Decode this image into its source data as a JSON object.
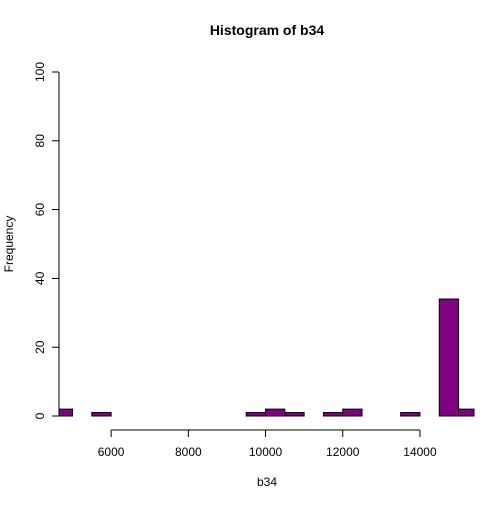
{
  "chart_data": {
    "type": "bar",
    "title": "Histogram of b34",
    "xlabel": "b34",
    "ylabel": "Frequency",
    "xlim": [
      4650,
      15400
    ],
    "ylim": [
      0,
      100
    ],
    "xticks": [
      6000,
      8000,
      10000,
      12000,
      14000
    ],
    "yticks": [
      0,
      20,
      40,
      60,
      80,
      100
    ],
    "bar_color": "#800080",
    "bins": [
      {
        "x0": 4500,
        "x1": 5000,
        "count": 2
      },
      {
        "x0": 5000,
        "x1": 5500,
        "count": 0
      },
      {
        "x0": 5500,
        "x1": 6000,
        "count": 1
      },
      {
        "x0": 6000,
        "x1": 6500,
        "count": 0
      },
      {
        "x0": 6500,
        "x1": 7000,
        "count": 0
      },
      {
        "x0": 7000,
        "x1": 7500,
        "count": 0
      },
      {
        "x0": 7500,
        "x1": 8000,
        "count": 0
      },
      {
        "x0": 8000,
        "x1": 8500,
        "count": 0
      },
      {
        "x0": 8500,
        "x1": 9000,
        "count": 0
      },
      {
        "x0": 9000,
        "x1": 9500,
        "count": 0
      },
      {
        "x0": 9500,
        "x1": 10000,
        "count": 1
      },
      {
        "x0": 10000,
        "x1": 10500,
        "count": 2
      },
      {
        "x0": 10500,
        "x1": 11000,
        "count": 1
      },
      {
        "x0": 11000,
        "x1": 11500,
        "count": 0
      },
      {
        "x0": 11500,
        "x1": 12000,
        "count": 1
      },
      {
        "x0": 12000,
        "x1": 12500,
        "count": 2
      },
      {
        "x0": 12500,
        "x1": 13000,
        "count": 0
      },
      {
        "x0": 13000,
        "x1": 13500,
        "count": 0
      },
      {
        "x0": 13500,
        "x1": 14000,
        "count": 1
      },
      {
        "x0": 14000,
        "x1": 14500,
        "count": 0
      },
      {
        "x0": 14500,
        "x1": 15000,
        "count": 34
      },
      {
        "x0": 15000,
        "x1": 15500,
        "count": 2
      }
    ]
  }
}
